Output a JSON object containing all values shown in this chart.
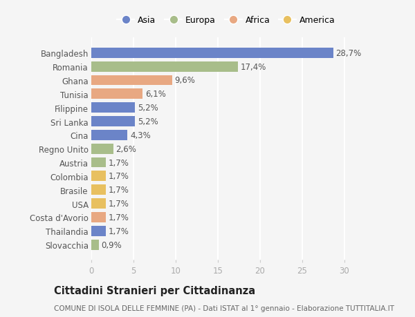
{
  "categories": [
    "Bangladesh",
    "Romania",
    "Ghana",
    "Tunisia",
    "Filippine",
    "Sri Lanka",
    "Cina",
    "Regno Unito",
    "Austria",
    "Colombia",
    "Brasile",
    "USA",
    "Costa d'Avorio",
    "Thailandia",
    "Slovacchia"
  ],
  "values": [
    28.7,
    17.4,
    9.6,
    6.1,
    5.2,
    5.2,
    4.3,
    2.6,
    1.7,
    1.7,
    1.7,
    1.7,
    1.7,
    1.7,
    0.9
  ],
  "labels": [
    "28,7%",
    "17,4%",
    "9,6%",
    "6,1%",
    "5,2%",
    "5,2%",
    "4,3%",
    "2,6%",
    "1,7%",
    "1,7%",
    "1,7%",
    "1,7%",
    "1,7%",
    "1,7%",
    "0,9%"
  ],
  "colors": [
    "#6b84c8",
    "#a8bd8a",
    "#e8a882",
    "#e8a882",
    "#6b84c8",
    "#6b84c8",
    "#6b84c8",
    "#a8bd8a",
    "#a8bd8a",
    "#e8c060",
    "#e8c060",
    "#e8c060",
    "#e8a882",
    "#6b84c8",
    "#a8bd8a"
  ],
  "legend_labels": [
    "Asia",
    "Europa",
    "Africa",
    "America"
  ],
  "legend_colors": [
    "#6b84c8",
    "#a8bd8a",
    "#e8a882",
    "#e8c060"
  ],
  "title": "Cittadini Stranieri per Cittadinanza",
  "subtitle": "COMUNE DI ISOLA DELLE FEMMINE (PA) - Dati ISTAT al 1° gennaio - Elaborazione TUTTITALIA.IT",
  "xlim": [
    0,
    32
  ],
  "xticks": [
    0,
    5,
    10,
    15,
    20,
    25,
    30
  ],
  "background_color": "#f5f5f5",
  "bar_height": 0.75,
  "label_fontsize": 8.5,
  "tick_fontsize": 8.5,
  "title_fontsize": 10.5,
  "subtitle_fontsize": 7.5
}
